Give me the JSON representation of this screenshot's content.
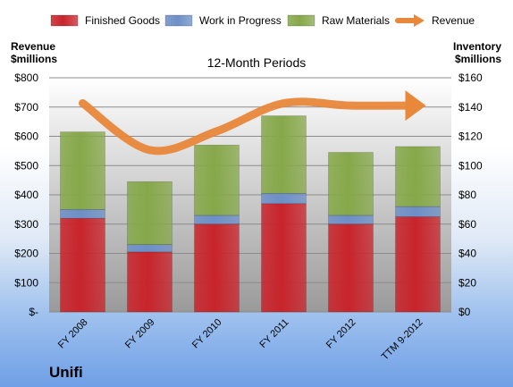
{
  "chart_data": {
    "type": "bar",
    "stacked": true,
    "title": "12-Month Periods",
    "company": "Unifi",
    "y_left_label": [
      "Revenue",
      "$millions"
    ],
    "y_right_label": [
      "Inventory",
      "$millions"
    ],
    "categories": [
      "FY 2008",
      "FY 2009",
      "FY 2010",
      "FY 2011",
      "FY 2012",
      "TTM 9-2012"
    ],
    "series": [
      {
        "name": "Finished Goods",
        "axis": "right",
        "color": "#c8242b",
        "values": [
          64,
          41,
          60,
          74,
          60,
          65
        ]
      },
      {
        "name": "Work in Progress",
        "axis": "right",
        "color": "#6d8fc7",
        "values": [
          6,
          5,
          6,
          7,
          6,
          7
        ]
      },
      {
        "name": "Raw Materials",
        "axis": "right",
        "color": "#86a84a",
        "values": [
          53,
          43,
          48,
          53,
          43,
          41
        ]
      },
      {
        "name": "Revenue",
        "axis": "left",
        "type": "line",
        "color": "#e9873a",
        "values": [
          713,
          553,
          617,
          713,
          705,
          705
        ]
      }
    ],
    "y_left": {
      "ylim": [
        0,
        800
      ],
      "ticks": [
        0,
        100,
        200,
        300,
        400,
        500,
        600,
        700,
        800
      ],
      "tick_labels": [
        "$-",
        "$100",
        "$200",
        "$300",
        "$400",
        "$500",
        "$600",
        "$700",
        "$800"
      ]
    },
    "y_right": {
      "ylim": [
        0,
        160
      ],
      "ticks": [
        0,
        20,
        40,
        60,
        80,
        100,
        120,
        140,
        160
      ],
      "tick_labels": [
        "$0",
        "$20",
        "$40",
        "$60",
        "$80",
        "$100",
        "$120",
        "$140",
        "$160"
      ]
    },
    "legend_position": "top",
    "grid": true
  }
}
